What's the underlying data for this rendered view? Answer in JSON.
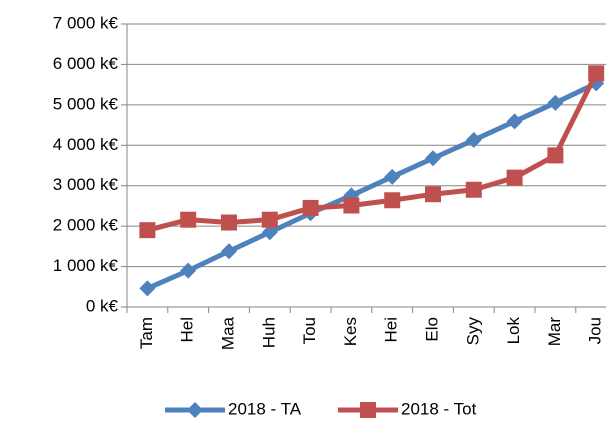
{
  "chart_data": {
    "type": "line",
    "categories": [
      "Tam",
      "Hel",
      "Maa",
      "Huh",
      "Tou",
      "Kes",
      "Hei",
      "Elo",
      "Syy",
      "Lok",
      "Mar",
      "Jou"
    ],
    "series": [
      {
        "name": "2018 - TA",
        "color": "#4f81bd",
        "marker": "diamond",
        "values": [
          460,
          900,
          1380,
          1850,
          2320,
          2760,
          3220,
          3680,
          4130,
          4590,
          5050,
          5530
        ]
      },
      {
        "name": "2018 - Tot",
        "color": "#c0504d",
        "marker": "square",
        "values": [
          1900,
          2160,
          2090,
          2160,
          2450,
          2510,
          2640,
          2790,
          2900,
          3200,
          3750,
          5780
        ]
      }
    ],
    "ylim": [
      0,
      7000
    ],
    "yticks": [
      {
        "value": 0,
        "label": "0 k€"
      },
      {
        "value": 1000,
        "label": "1 000 k€"
      },
      {
        "value": 2000,
        "label": "2 000 k€"
      },
      {
        "value": 3000,
        "label": "3 000 k€"
      },
      {
        "value": 4000,
        "label": "4 000 k€"
      },
      {
        "value": 5000,
        "label": "5 000 k€"
      },
      {
        "value": 6000,
        "label": "6 000 k€"
      },
      {
        "value": 7000,
        "label": "7 000 k€"
      }
    ],
    "grid": true,
    "legend": "bottom"
  }
}
